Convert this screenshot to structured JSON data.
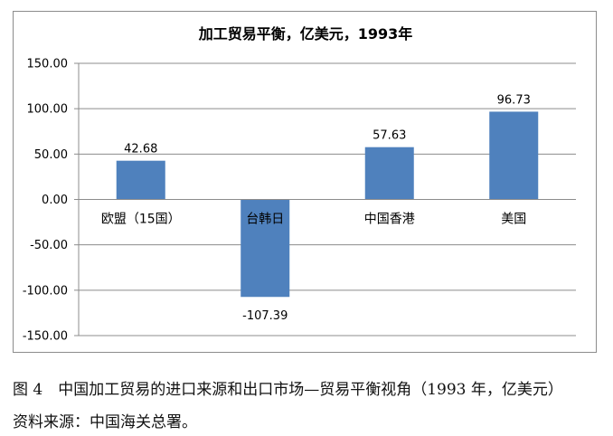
{
  "chart_data": {
    "type": "bar",
    "title": "加工贸易平衡，亿美元，1993年",
    "categories": [
      "欧盟（15国）",
      "台韩日",
      "中国香港",
      "美国"
    ],
    "values": [
      42.68,
      -107.39,
      57.63,
      96.73
    ],
    "value_labels": [
      "42.68",
      "-107.39",
      "57.63",
      "96.73"
    ],
    "ylim": [
      -150,
      150
    ],
    "yticks": [
      150,
      100,
      50,
      0,
      -50,
      -100,
      -150
    ],
    "ytick_labels": [
      "150.00",
      "100.00",
      "50.00",
      "0.00",
      "-50.00",
      "-100.00",
      "-150.00"
    ],
    "grid": true,
    "bar_color": "#4f81bd",
    "grid_color": "#8c8c8c"
  },
  "caption": {
    "figure": "图 4　中国加工贸易的进口来源和出口市场—贸易平衡视角（1993 年，亿美元）",
    "source": "资料来源：中国海关总署。"
  }
}
